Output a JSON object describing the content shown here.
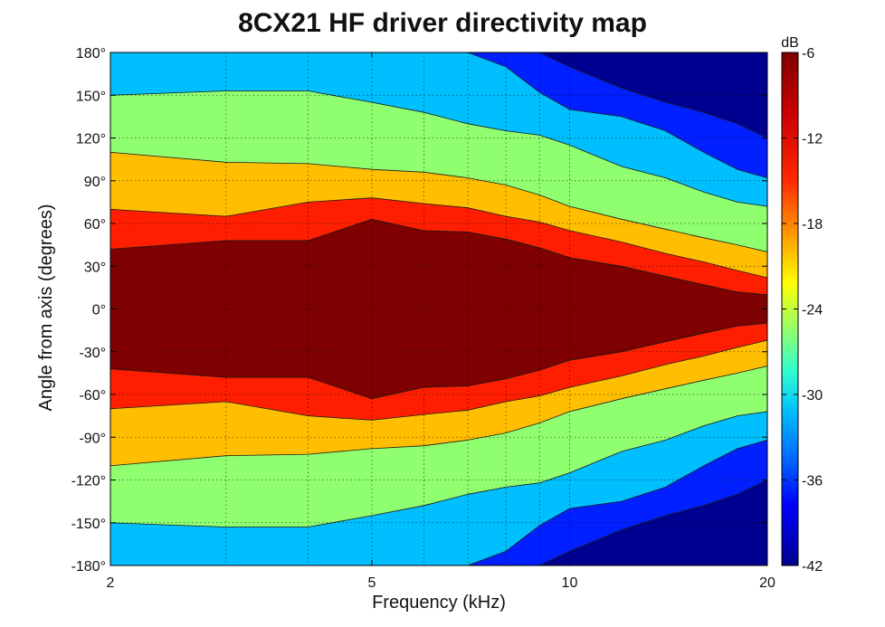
{
  "chart_data": {
    "type": "heatmap",
    "title": "8CX21 HF driver directivity map",
    "xlabel": "Frequency (kHz)",
    "ylabel": "Angle from axis (degrees)",
    "x_scale": "log",
    "xlim": [
      2,
      20
    ],
    "ylim": [
      -180,
      180
    ],
    "x_ticks": [
      2,
      5,
      10,
      20
    ],
    "x_tick_labels": [
      "2",
      "5",
      "10",
      "20"
    ],
    "x_minor_grid": [
      3,
      4,
      6,
      7,
      8,
      9
    ],
    "y_ticks": [
      180,
      150,
      120,
      90,
      60,
      30,
      0,
      -30,
      -60,
      -90,
      -120,
      -150,
      -180
    ],
    "y_tick_labels": [
      "180°",
      "150°",
      "120°",
      "90°",
      "60°",
      "30°",
      "0°",
      "-30°",
      "-60°",
      "-90°",
      "-120°",
      "-150°",
      "-180°"
    ],
    "grid": true,
    "colorbar": {
      "label": "dB",
      "range": [
        -42,
        -6
      ],
      "ticks": [
        -6,
        -12,
        -18,
        -24,
        -30,
        -36,
        -42
      ],
      "tick_labels": [
        "-6",
        "-12",
        "-18",
        "-24",
        "-30",
        "-36",
        "-42"
      ]
    },
    "contour_levels_db": [
      -9,
      -15,
      -21,
      -27,
      -33,
      -39
    ],
    "band_colors": [
      "#7f0000",
      "#ff1f00",
      "#ffbf00",
      "#8fff70",
      "#00bfff",
      "#0020ff",
      "#000090"
    ],
    "contour_boundaries_deg": {
      "frequencies_khz": [
        2,
        3,
        4,
        5,
        6,
        7,
        8,
        9,
        10,
        12,
        14,
        16,
        18,
        20
      ],
      "m9": [
        42,
        48,
        48,
        63,
        55,
        54,
        49,
        43,
        36,
        30,
        23,
        17,
        12,
        10
      ],
      "m15": [
        70,
        65,
        75,
        78,
        74,
        71,
        65,
        61,
        55,
        47,
        39,
        33,
        27,
        22
      ],
      "m21": [
        110,
        103,
        102,
        98,
        96,
        92,
        87,
        80,
        72,
        63,
        56,
        50,
        45,
        40
      ],
      "m27": [
        150,
        153,
        153,
        145,
        138,
        130,
        125,
        122,
        115,
        100,
        92,
        82,
        75,
        72
      ],
      "m33": [
        181,
        181,
        181,
        181,
        181,
        181,
        170,
        152,
        140,
        135,
        125,
        110,
        98,
        92
      ],
      "m39": [
        181,
        181,
        181,
        181,
        181,
        181,
        181,
        181,
        170,
        155,
        145,
        138,
        130,
        120
      ]
    }
  }
}
